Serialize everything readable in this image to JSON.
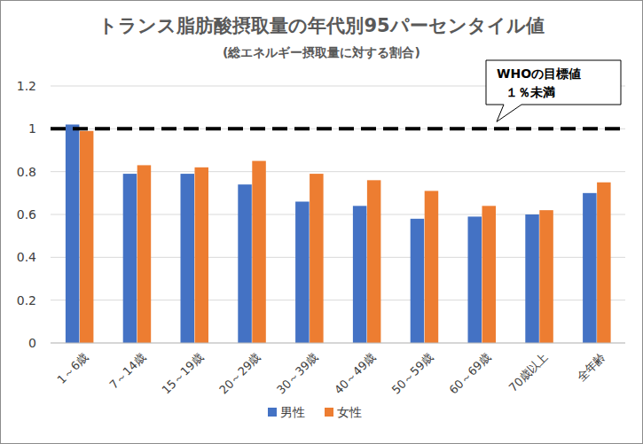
{
  "chart_data": {
    "type": "bar",
    "title": "トランス脂肪酸摂取量の年代別95パーセンタイル値",
    "subtitle": "(総エネルギー摂取量に対する割合)",
    "categories": [
      "1～6歳",
      "7～14歳",
      "15～19歳",
      "20～29歳",
      "30～39歳",
      "40～49歳",
      "50～59歳",
      "60～69歳",
      "70歳以上",
      "全年齢"
    ],
    "series": [
      {
        "name": "男性",
        "color": "#4472c4",
        "values": [
          1.02,
          0.79,
          0.79,
          0.74,
          0.66,
          0.64,
          0.58,
          0.59,
          0.6,
          0.7
        ]
      },
      {
        "name": "女性",
        "color": "#ed7d31",
        "values": [
          0.99,
          0.83,
          0.82,
          0.85,
          0.79,
          0.76,
          0.71,
          0.64,
          0.62,
          0.75
        ]
      }
    ],
    "ylim": [
      0,
      1.2
    ],
    "yticks": [
      0,
      0.2,
      0.4,
      0.6,
      0.8,
      1,
      1.2
    ],
    "grid": true,
    "legend": "bottom",
    "annotations": [
      {
        "y": 1,
        "line_style": "dashed",
        "text": [
          "WHOの目標値",
          "１％未満"
        ]
      }
    ]
  }
}
